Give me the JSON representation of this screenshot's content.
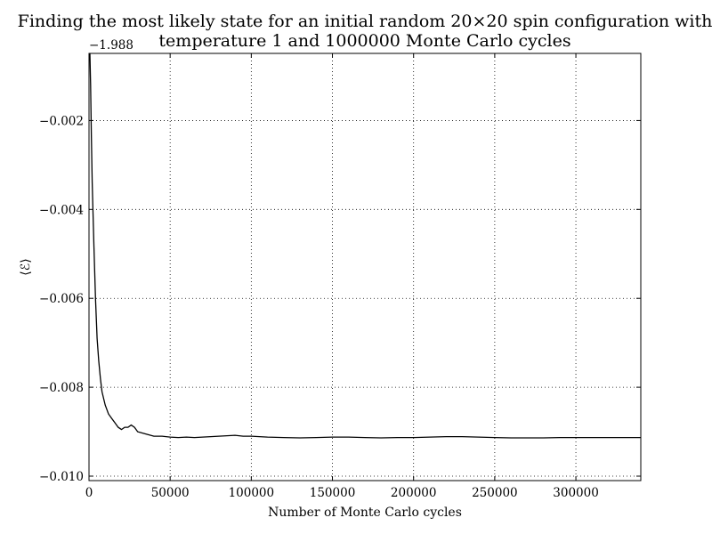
{
  "chart_data": {
    "type": "line",
    "title": [
      "Finding the most likely state for an initial random 20×20 spin configuration with",
      "temperature 1 and 1000000 Monte Carlo cycles"
    ],
    "xlabel": "Number of Monte Carlo cycles",
    "ylabel": "⟨ℰ⟩",
    "y_offset_label": "−1.988",
    "xlim": [
      0,
      340000
    ],
    "ylim": [
      -0.0101,
      -0.00049
    ],
    "grid": true,
    "grid_style": "dotted",
    "x_ticks": [
      0,
      50000,
      100000,
      150000,
      200000,
      250000,
      300000
    ],
    "x_tick_labels": [
      "0",
      "50000",
      "100000",
      "150000",
      "200000",
      "250000",
      "300000"
    ],
    "y_ticks": [
      -0.002,
      -0.004,
      -0.006,
      -0.008,
      -0.01
    ],
    "y_tick_labels": [
      "−0.002",
      "−0.004",
      "−0.006",
      "−0.008",
      "−0.010"
    ],
    "line_color": "#000000",
    "series": [
      {
        "x": [
          0,
          500,
          1000,
          1500,
          2000,
          3000,
          4000,
          5000,
          6000,
          7000,
          8000,
          10000,
          12000,
          14000,
          16000,
          18000,
          20000,
          22000,
          24000,
          26000,
          28000,
          30000,
          35000,
          40000,
          45000,
          50000,
          55000,
          60000,
          65000,
          70000,
          75000,
          80000,
          85000,
          90000,
          95000,
          100000,
          110000,
          120000,
          130000,
          140000,
          150000,
          160000,
          170000,
          180000,
          190000,
          200000,
          210000,
          220000,
          230000,
          240000,
          250000,
          260000,
          270000,
          280000,
          290000,
          300000,
          310000,
          320000,
          330000,
          340000
        ],
        "values": [
          -0.0003,
          -0.0004,
          -0.0012,
          -0.0024,
          -0.0034,
          -0.0048,
          -0.006,
          -0.0069,
          -0.0074,
          -0.0078,
          -0.0081,
          -0.0084,
          -0.0086,
          -0.0087,
          -0.0088,
          -0.0089,
          -0.00895,
          -0.0089,
          -0.0089,
          -0.00885,
          -0.0089,
          -0.009,
          -0.00905,
          -0.0091,
          -0.0091,
          -0.00912,
          -0.00913,
          -0.00912,
          -0.00913,
          -0.00912,
          -0.00911,
          -0.0091,
          -0.00909,
          -0.00908,
          -0.0091,
          -0.0091,
          -0.00912,
          -0.00913,
          -0.00914,
          -0.00913,
          -0.00912,
          -0.00912,
          -0.00913,
          -0.00914,
          -0.00913,
          -0.00913,
          -0.00912,
          -0.00911,
          -0.00911,
          -0.00912,
          -0.00913,
          -0.00914,
          -0.00914,
          -0.00914,
          -0.00913,
          -0.00913,
          -0.00913,
          -0.00913,
          -0.00913,
          -0.00913
        ]
      }
    ]
  }
}
